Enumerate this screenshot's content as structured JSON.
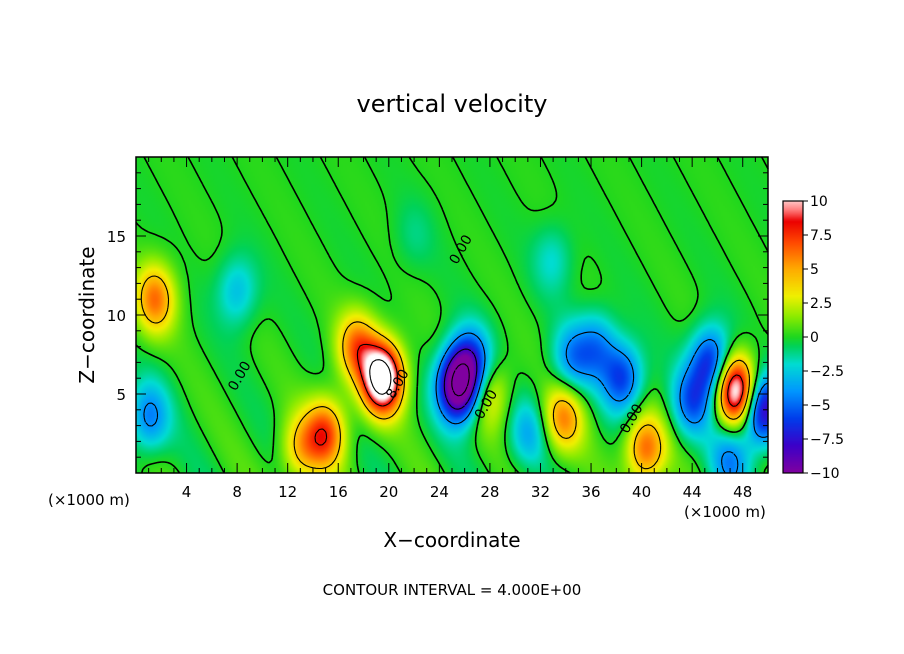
{
  "chart_data": {
    "type": "heatmap",
    "title": "vertical velocity",
    "xlabel": "X−coordinate",
    "ylabel": "Z−coordinate",
    "x_unit": "(×1000 m)",
    "xlim": [
      0,
      50
    ],
    "ylim": [
      0,
      20
    ],
    "x_ticks": [
      4,
      8,
      12,
      16,
      20,
      24,
      28,
      32,
      36,
      40,
      44,
      48
    ],
    "y_ticks": [
      5,
      10,
      15
    ],
    "colorbar": {
      "ticks": [
        10,
        7.5,
        5,
        2.5,
        0,
        -2.5,
        -5,
        -7.5,
        -10
      ],
      "tick_labels": [
        "10",
        "7.5",
        "5",
        "2.5",
        "0",
        "−2.5",
        "−5",
        "−7.5",
        "−10"
      ],
      "range": [
        -10,
        10
      ]
    },
    "contour_labels": [
      {
        "text": "0.00",
        "x": 26,
        "z": 14
      },
      {
        "text": "0.00",
        "x": 8.5,
        "z": 6
      },
      {
        "text": "8.00",
        "x": 21,
        "z": 5.5
      },
      {
        "text": "0.00",
        "x": 28,
        "z": 4.2
      },
      {
        "text": "0.00",
        "x": 39.5,
        "z": 3.3
      }
    ],
    "features": [
      {
        "x": 19.5,
        "z": 6.0,
        "peak": 14
      },
      {
        "x": 17.5,
        "z": 8.0,
        "peak": 6
      },
      {
        "x": 25.5,
        "z": 5.5,
        "peak": -12
      },
      {
        "x": 47.5,
        "z": 5.2,
        "peak": 12
      },
      {
        "x": 49.5,
        "z": 4.0,
        "peak": -9
      },
      {
        "x": 1.5,
        "z": 11.0,
        "peak": 6
      },
      {
        "x": 15.0,
        "z": 2.5,
        "peak": 7
      },
      {
        "x": 33.8,
        "z": 3.5,
        "peak": 5.5
      },
      {
        "x": 40.3,
        "z": 1.5,
        "peak": 6.5
      },
      {
        "x": 13.0,
        "z": 1.5,
        "peak": 4
      },
      {
        "x": 8.0,
        "z": 11.5,
        "peak": -3
      },
      {
        "x": 1.0,
        "z": 3.5,
        "peak": -4.5
      },
      {
        "x": 26.5,
        "z": 7.0,
        "peak": -6
      },
      {
        "x": 28.0,
        "z": 5.0,
        "peak": 3.5
      },
      {
        "x": 38.5,
        "z": 6.0,
        "peak": -6
      },
      {
        "x": 45.5,
        "z": 7.0,
        "peak": -7
      },
      {
        "x": 44.0,
        "z": 4.5,
        "peak": -5
      },
      {
        "x": 34.5,
        "z": 7.2,
        "peak": -4
      },
      {
        "x": 31.0,
        "z": 2.5,
        "peak": -3
      },
      {
        "x": 36.5,
        "z": 8.0,
        "peak": -4
      },
      {
        "x": 47.0,
        "z": 0.8,
        "peak": -4
      },
      {
        "x": 33.0,
        "z": 13.5,
        "peak": -2
      },
      {
        "x": 22.0,
        "z": 15.0,
        "peak": -1
      }
    ]
  },
  "footer_text": "CONTOUR INTERVAL = 4.000E+00"
}
